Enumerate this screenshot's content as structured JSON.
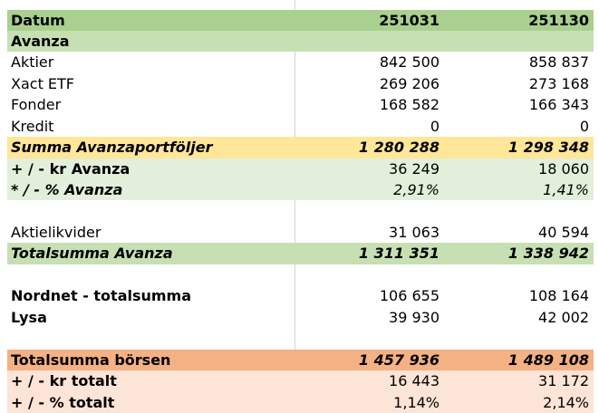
{
  "table": {
    "header": [
      "Datum",
      "251031",
      "251130"
    ],
    "rows": [
      [
        "Avanza"
      ],
      [
        "Aktier",
        "842 500",
        "858 837"
      ],
      [
        "Xact ETF",
        "269 206",
        "273 168"
      ],
      [
        "Fonder",
        "168 582",
        "166 343"
      ],
      [
        "Kredit",
        "0",
        "0"
      ],
      [
        "Summa Avanzaportföljer",
        "1 280 288",
        "1 298 348"
      ],
      [
        "+ / - kr Avanza",
        "36 249",
        "18 060"
      ],
      [
        "* / - % Avanza",
        "2,91%",
        "1,41%"
      ],
      [
        "Aktielikvider",
        "31 063",
        "40 594"
      ],
      [
        "Totalsumma Avanza",
        "1 311 351",
        "1 338 942"
      ],
      [
        "Nordnet - totalsumma",
        "106 655",
        "108 164"
      ],
      [
        "Lysa",
        "39 930",
        "42 002"
      ],
      [
        "Totalsumma börsen",
        "1 457 936",
        "1 489 108"
      ],
      [
        "+ / - kr totalt",
        "16 443",
        "31 172"
      ],
      [
        "+ / - % totalt",
        "1,14%",
        "2,14%"
      ]
    ]
  }
}
